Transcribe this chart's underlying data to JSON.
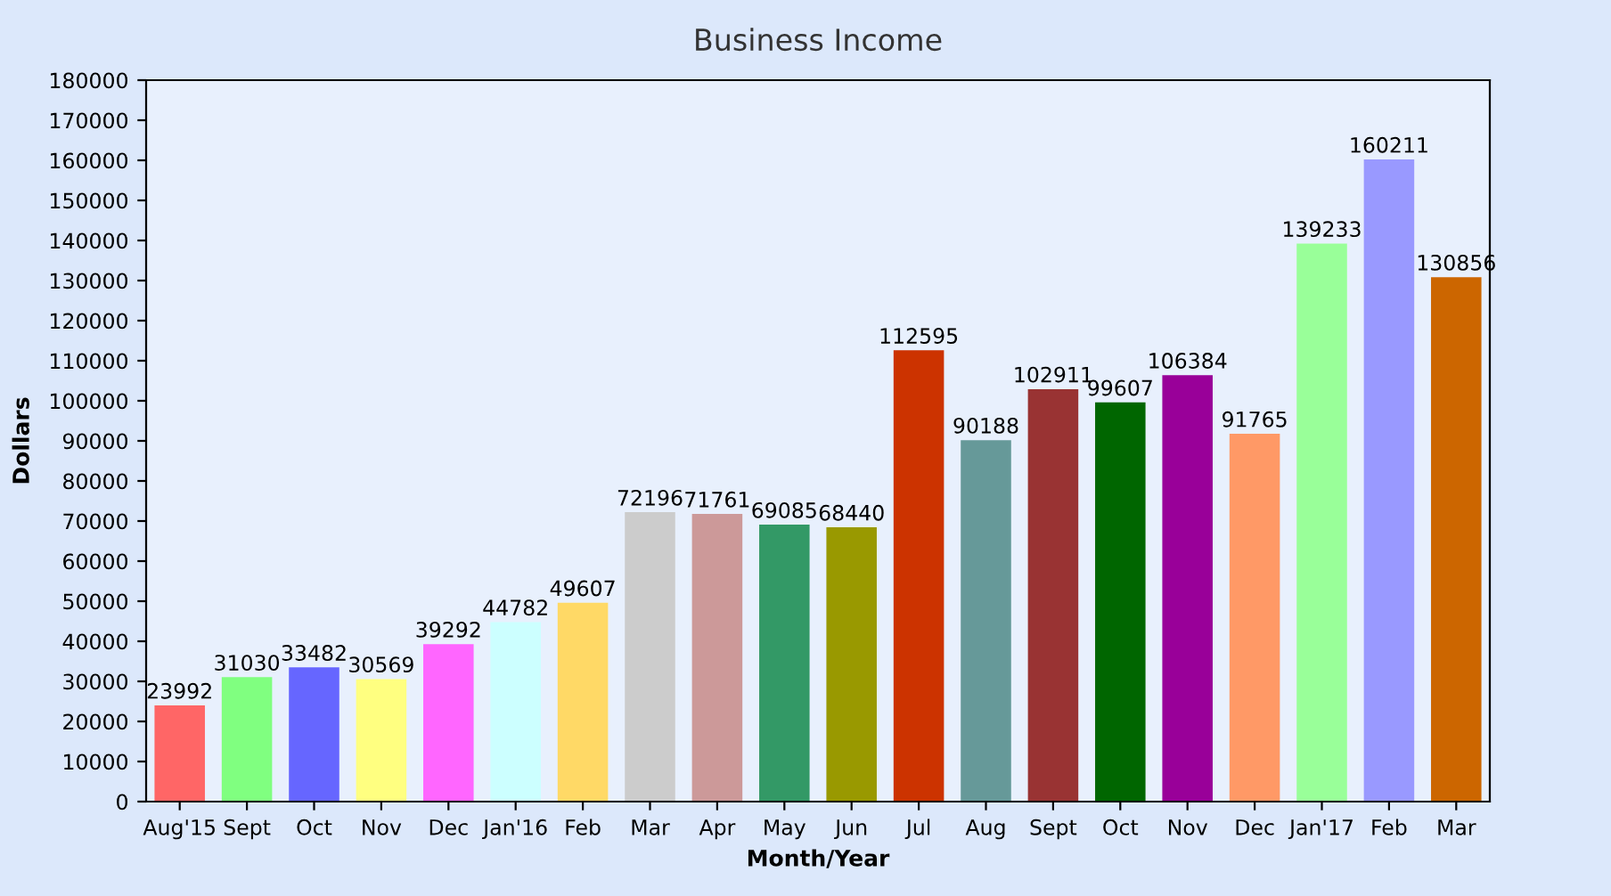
{
  "chart_data": {
    "type": "bar",
    "title": "Business Income",
    "xlabel": "Month/Year",
    "ylabel": "Dollars",
    "categories": [
      "Aug'15",
      "Sept",
      "Oct",
      "Nov",
      "Dec",
      "Jan'16",
      "Feb",
      "Mar",
      "Apr",
      "May",
      "Jun",
      "Jul",
      "Aug",
      "Sept",
      "Oct",
      "Nov",
      "Dec",
      "Jan'17",
      "Feb",
      "Mar"
    ],
    "values": [
      23992,
      31030,
      33482,
      30569,
      39292,
      44782,
      49607,
      72196,
      71761,
      69085,
      68440,
      112595,
      90188,
      102911,
      99607,
      106384,
      91765,
      139233,
      160211,
      130856
    ],
    "colors": [
      "#ff6666",
      "#80ff80",
      "#6666ff",
      "#ffff80",
      "#ff66ff",
      "#ccffff",
      "#ffd966",
      "#cccccc",
      "#cc9999",
      "#339966",
      "#999900",
      "#cc3300",
      "#669999",
      "#993333",
      "#006600",
      "#990099",
      "#ff9966",
      "#99ff99",
      "#9999ff",
      "#cc6600"
    ],
    "ylim": [
      0,
      180000
    ],
    "yticks": [
      0,
      10000,
      20000,
      30000,
      40000,
      50000,
      60000,
      70000,
      80000,
      90000,
      100000,
      110000,
      120000,
      130000,
      140000,
      150000,
      160000,
      170000,
      180000
    ],
    "data_labels": true,
    "grid": false,
    "legend": false
  }
}
